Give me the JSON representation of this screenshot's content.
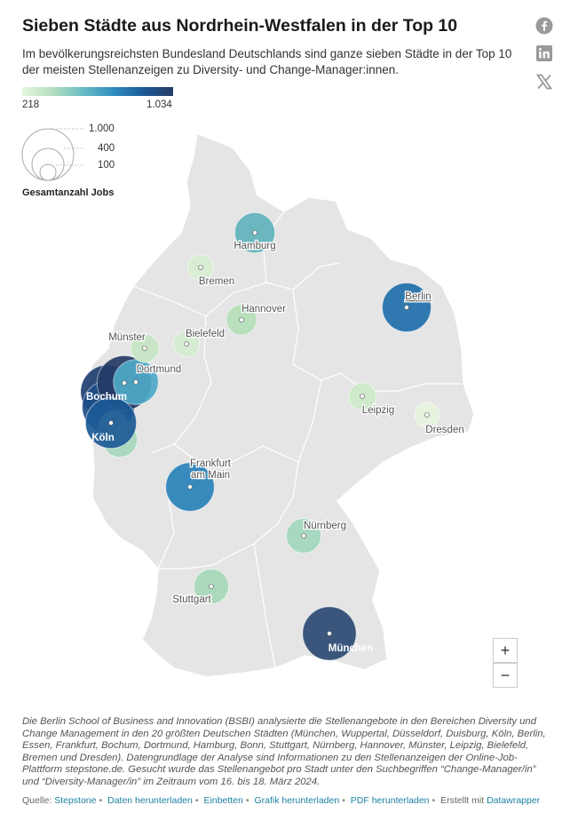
{
  "header": {
    "title": "Sieben Städte aus Nordrhein-Westfalen in der Top 10",
    "description": "Im bevölkerungsreichsten Bundesland Deutschlands sind ganze sieben Städte in der Top 10 der meisten Stellenanzeigen zu Diversity- und Change-Manager:innen."
  },
  "share_icons": [
    "facebook-icon",
    "linkedin-icon",
    "x-icon"
  ],
  "legend": {
    "color_min": "218",
    "color_max": "1.034",
    "colors": [
      "#e6f5de",
      "#b5dfc0",
      "#69bcc4",
      "#2f8fbf",
      "#1c5a96",
      "#253b66"
    ],
    "size_values": [
      "1.000",
      "400",
      "100"
    ],
    "size_title": "Gesamtanzahl Jobs"
  },
  "cities": [
    {
      "name": "Hamburg",
      "jobs": 560,
      "color": "#5fb3bd"
    },
    {
      "name": "Bremen",
      "jobs": 230,
      "color": "#d7eed3"
    },
    {
      "name": "Berlin",
      "jobs": 830,
      "color": "#1f6fab"
    },
    {
      "name": "Hannover",
      "jobs": 320,
      "color": "#b4dfb8"
    },
    {
      "name": "Münster",
      "jobs": 280,
      "color": "#c6e6c4"
    },
    {
      "name": "Bielefeld",
      "jobs": 240,
      "color": "#d4ecd0"
    },
    {
      "name": "Dortmund",
      "jobs": 700,
      "color": "#4fa9c7"
    },
    {
      "name": "Bochum",
      "jobs": 1034,
      "color": "#253b66"
    },
    {
      "name": "Köln",
      "jobs": 900,
      "color": "#1c5a96"
    },
    {
      "name": "Leipzig",
      "jobs": 260,
      "color": "#cde9c9"
    },
    {
      "name": "Dresden",
      "jobs": 218,
      "color": "#e6f5de"
    },
    {
      "name": "Frankfurt am Main",
      "jobs": 820,
      "color": "#2a82b8"
    },
    {
      "name": "Nürnberg",
      "jobs": 420,
      "color": "#a3d7bd"
    },
    {
      "name": "Stuttgart",
      "jobs": 420,
      "color": "#a6d8b9"
    },
    {
      "name": "München",
      "jobs": 1000,
      "color": "#2d4a73"
    }
  ],
  "zoom": {
    "in": "+",
    "out": "−"
  },
  "note": "Die Berlin School of Business and Innovation (BSBI) analysierte die Stellenangebote in den Bereichen Diversity und Change Management in den 20 größten Deutschen Städten (München, Wuppertal, Düsseldorf, Duisburg, Köln, Berlin, Essen, Frankfurt, Bochum, Dortmund, Hamburg, Bonn, Stuttgart, Nürnberg, Hannover, Münster, Leipzig, Bielefeld, Bremen und Dresden). Datengrundlage der Analyse sind Informationen zu den Stellenanzeigen der Online-Job-Plattform stepstone.de. Gesucht wurde das Stellenangebot pro Stadt unter den Suchbegriffen “Change-Manager/in” und “Diversity-Manager/in” im Zeitraum vom 16. bis 18. März 2024.",
  "footer": {
    "source_label": "Quelle:",
    "source": "Stepstone",
    "data_link": "Daten herunterladen",
    "embed_link": "Einbetten",
    "graphic_link": "Grafik herunterladen",
    "pdf_link": "PDF herunterladen",
    "created_label": "Erstellt mit",
    "tool": "Datawrapper"
  }
}
